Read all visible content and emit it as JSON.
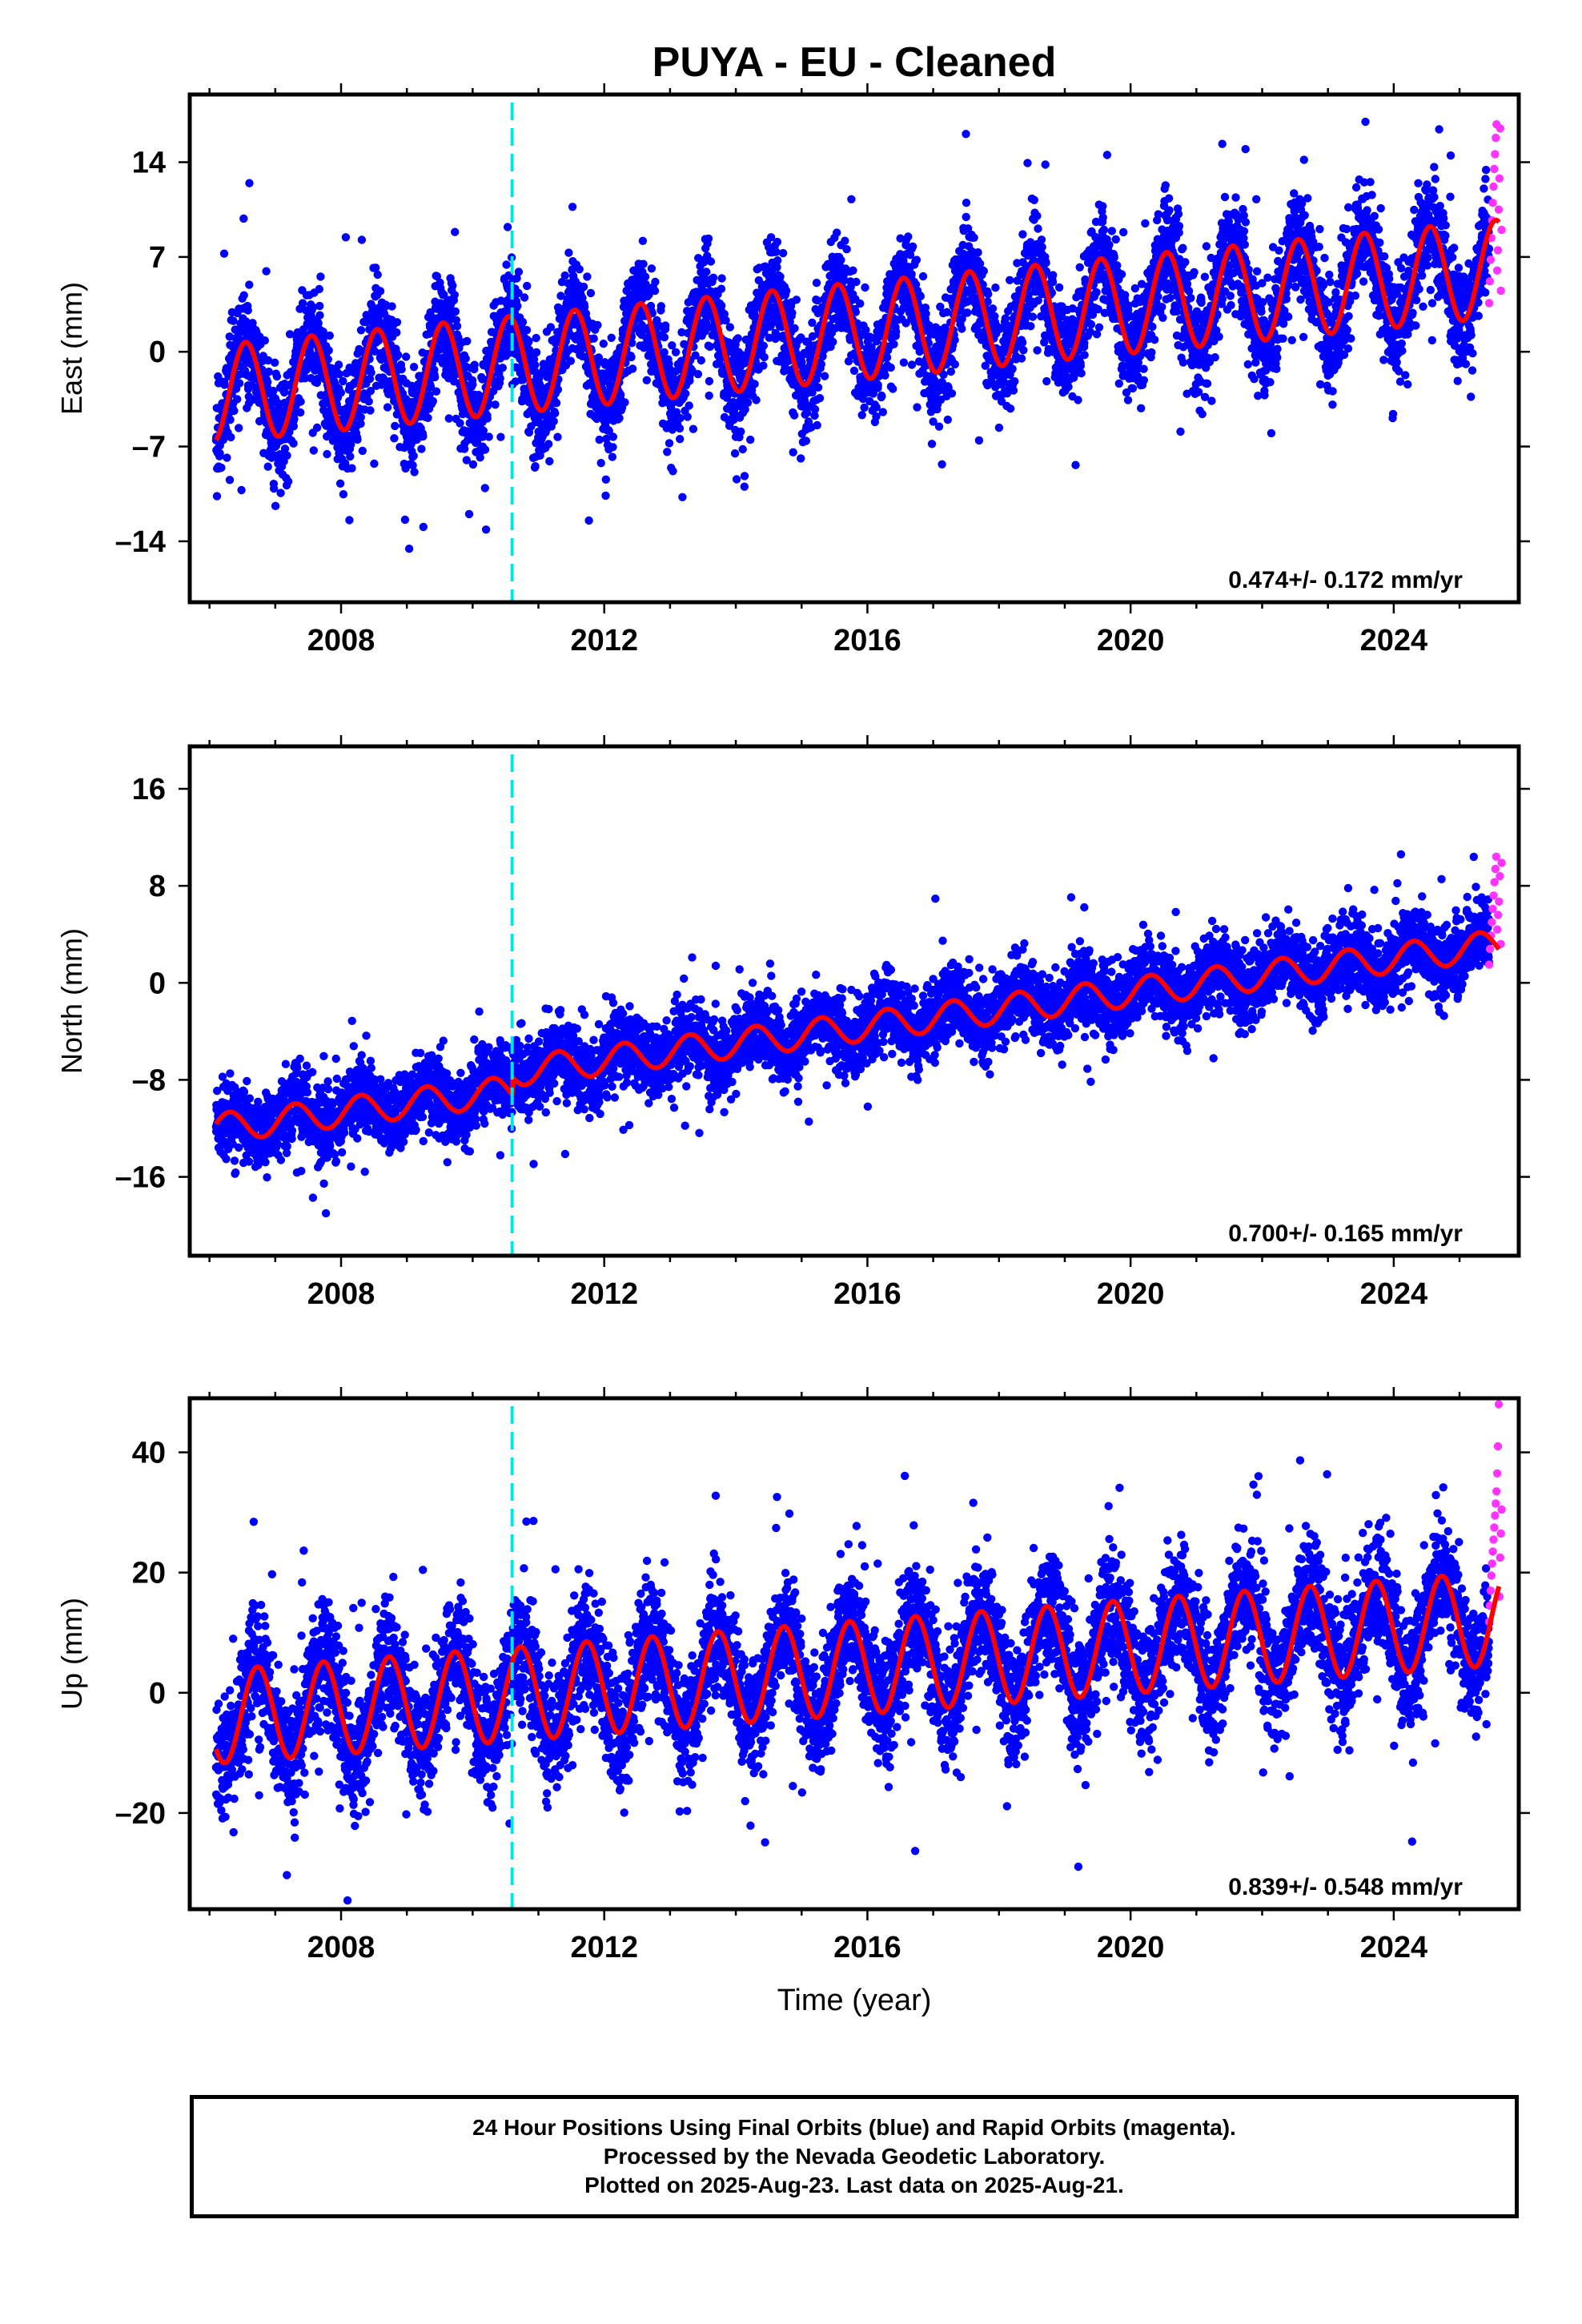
{
  "title": "PUYA  - EU - Cleaned",
  "xlabel": "Time (year)",
  "footer": {
    "line1": "24 Hour Positions Using Final Orbits (blue) and Rapid Orbits (magenta).",
    "line2": "Processed by the Nevada Geodetic Laboratory.",
    "line3": "Plotted on 2025-Aug-23. Last data on 2025-Aug-21."
  },
  "colors": {
    "final_points": "#0000ff",
    "rapid_points": "#ff33ff",
    "model": "#ff0000",
    "event_line": "#00e5e5"
  },
  "chart_data": [
    {
      "type": "scatter",
      "ylabel": "East (mm)",
      "xlim": [
        2005.7,
        2025.9
      ],
      "ylim": [
        -18.5,
        19
      ],
      "yticks": [
        -14,
        -7,
        0,
        7,
        14
      ],
      "xticks": [
        2008,
        2012,
        2016,
        2020,
        2024
      ],
      "event_line_x": 2010.6,
      "rate_label": "0.474+/- 0.172 mm/yr",
      "model": {
        "start": 2006.1,
        "end": 2025.6,
        "offset": -3.1,
        "trend": 0.474,
        "amplitude": 3.6,
        "phase": 0.3,
        "step": {
          "at": 2010.6,
          "size": 0.0
        }
      },
      "scatter_sd": 1.9,
      "rapid": {
        "start": 2025.45,
        "end": 2025.64,
        "values": [
          3.6,
          5.2,
          6.8,
          8.4,
          9.7,
          11.0,
          12.2,
          13.5,
          14.6,
          15.8,
          16.8,
          6.0,
          7.5,
          10.5,
          12.8,
          16.5,
          4.5,
          9.0
        ]
      }
    },
    {
      "type": "scatter",
      "ylabel": "North (mm)",
      "xlim": [
        2005.7,
        2025.9
      ],
      "ylim": [
        -22.5,
        19.5
      ],
      "yticks": [
        -16,
        -8,
        0,
        8,
        16
      ],
      "xticks": [
        2008,
        2012,
        2016,
        2020,
        2024
      ],
      "event_line_x": 2010.6,
      "rate_label": "0.700+/- 0.165 mm/yr",
      "model": {
        "start": 2006.1,
        "end": 2025.6,
        "offset": -12.0,
        "trend": 0.7,
        "amplitude": 1.2,
        "phase": 0.05,
        "step": {
          "at": 2010.6,
          "size": 1.5
        }
      },
      "scatter_sd": 1.5,
      "rapid": {
        "start": 2025.45,
        "end": 2025.64,
        "values": [
          1.5,
          2.8,
          3.9,
          5.0,
          6.1,
          7.2,
          8.3,
          9.4,
          10.4,
          4.4,
          5.6,
          6.7,
          8.8,
          3.2,
          9.9
        ]
      }
    },
    {
      "type": "scatter",
      "ylabel": "Up (mm)",
      "xlim": [
        2005.7,
        2025.9
      ],
      "ylim": [
        -36,
        49
      ],
      "yticks": [
        -20,
        0,
        20,
        40
      ],
      "xticks": [
        2008,
        2012,
        2016,
        2020,
        2024
      ],
      "event_line_x": 2010.6,
      "rate_label": "0.839+/- 0.548 mm/yr",
      "model": {
        "start": 2006.1,
        "end": 2025.6,
        "offset": -4.0,
        "trend": 0.839,
        "amplitude": 7.8,
        "phase": 0.48,
        "step": {
          "at": 2010.6,
          "size": 0.0
        }
      },
      "scatter_sd": 5.0,
      "rapid": {
        "start": 2025.45,
        "end": 2025.64,
        "values": [
          11.8,
          14.5,
          17.0,
          19.5,
          21.5,
          23.5,
          25.5,
          27.5,
          29.5,
          31.5,
          33.5,
          36.5,
          41.0,
          48.0,
          16.0,
          22.5,
          26.5,
          30.5
        ]
      }
    }
  ]
}
